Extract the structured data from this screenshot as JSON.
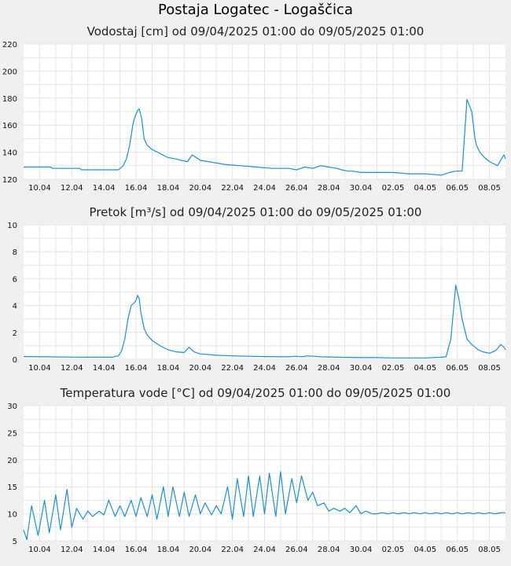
{
  "title": "Postaja Logatec - Logaščica",
  "colors": {
    "line": "#1f8fd0",
    "grid": "#e4e4e4",
    "plot_bg": "#ffffff",
    "page_bg": "#f0f0f0"
  },
  "chart_data": [
    {
      "type": "line",
      "title": "Vodostaj [cm] od 09/04/2025 01:00 do 09/05/2025 01:00",
      "xlabel": "",
      "ylabel": "",
      "x_tick_labels": [
        "10.04",
        "12.04",
        "14.04",
        "16.04",
        "18.04",
        "20.04",
        "22.04",
        "24.04",
        "26.04",
        "28.04",
        "30.04",
        "02.05",
        "04.05",
        "06.05",
        "08.05"
      ],
      "x_range_days": [
        0,
        30
      ],
      "ylim": [
        120,
        220
      ],
      "y_ticks": [
        120,
        140,
        160,
        180,
        200,
        220
      ],
      "grid": true,
      "series": [
        {
          "x": [
            0,
            0.8,
            1.7,
            1.8,
            3.5,
            3.6,
            4.0,
            5.9,
            6.2,
            6.4,
            6.6,
            6.8,
            6.9,
            7.0,
            7.1,
            7.2,
            7.35,
            7.5,
            7.7,
            8.0,
            8.5,
            9.0,
            9.5,
            9.8,
            10.2,
            10.5,
            11.0,
            11.5,
            12.5,
            13.5,
            14.5,
            15.5,
            16.5,
            17.0,
            17.5,
            18.0,
            18.5,
            19.0,
            19.5,
            19.8,
            20.2,
            20.5,
            21.0,
            22.0,
            23.0,
            24.0,
            25.0,
            26.0,
            26.5,
            26.9,
            27.3,
            27.6,
            27.9,
            28.1,
            28.2,
            28.4,
            28.7,
            29.0,
            29.5,
            29.9,
            30.0
          ],
          "y": [
            129,
            129,
            129,
            128,
            128,
            127,
            127,
            127,
            130,
            135,
            145,
            160,
            165,
            168,
            171,
            172,
            165,
            150,
            145,
            142,
            139,
            136,
            135,
            134,
            133,
            138,
            134,
            133,
            131,
            130,
            129,
            128,
            128,
            127,
            129,
            128,
            130,
            129,
            128,
            127,
            126,
            126,
            125,
            125,
            125,
            124,
            124,
            123,
            125,
            126,
            126,
            179,
            170,
            150,
            145,
            140,
            136,
            133,
            130,
            138,
            135
          ]
        }
      ]
    },
    {
      "type": "line",
      "title": "Pretok [m³/s] od 09/04/2025 01:00 do 09/05/2025 01:00",
      "xlabel": "",
      "ylabel": "",
      "x_tick_labels": [
        "10.04",
        "12.04",
        "14.04",
        "16.04",
        "18.04",
        "20.04",
        "22.04",
        "24.04",
        "26.04",
        "28.04",
        "30.04",
        "02.05",
        "04.05",
        "06.05",
        "08.05"
      ],
      "x_range_days": [
        0,
        30
      ],
      "ylim": [
        0,
        10
      ],
      "y_ticks": [
        0,
        2,
        4,
        6,
        8,
        10
      ],
      "grid": true,
      "series": [
        {
          "x": [
            0,
            1.5,
            3.0,
            5.5,
            5.9,
            6.1,
            6.3,
            6.5,
            6.7,
            6.9,
            7.0,
            7.1,
            7.2,
            7.3,
            7.5,
            7.7,
            8.0,
            8.5,
            9.0,
            9.5,
            10.0,
            10.3,
            10.6,
            11.0,
            12.0,
            13.0,
            15.0,
            16.5,
            16.9,
            17.3,
            17.7,
            18.5,
            19.5,
            21.0,
            22.0,
            23.0,
            24.0,
            25.0,
            26.0,
            26.3,
            26.6,
            26.9,
            27.1,
            27.3,
            27.6,
            27.9,
            28.1,
            28.3,
            28.6,
            29.0,
            29.4,
            29.7,
            29.9,
            30.0
          ],
          "y": [
            0.2,
            0.18,
            0.16,
            0.15,
            0.25,
            0.6,
            1.5,
            3.0,
            4.0,
            4.2,
            4.4,
            4.75,
            4.5,
            3.5,
            2.3,
            1.8,
            1.4,
            1.0,
            0.7,
            0.55,
            0.5,
            0.9,
            0.55,
            0.4,
            0.3,
            0.25,
            0.2,
            0.18,
            0.22,
            0.18,
            0.25,
            0.18,
            0.15,
            0.12,
            0.12,
            0.1,
            0.1,
            0.1,
            0.15,
            0.18,
            1.5,
            5.5,
            4.5,
            3.0,
            1.5,
            1.1,
            0.9,
            0.7,
            0.55,
            0.45,
            0.65,
            1.1,
            0.9,
            0.7
          ]
        }
      ]
    },
    {
      "type": "line",
      "title": "Temperatura vode [°C] od 09/04/2025 01:00 do 09/05/2025 01:00",
      "xlabel": "",
      "ylabel": "",
      "x_tick_labels": [
        "10.04",
        "12.04",
        "14.04",
        "16.04",
        "18.04",
        "20.04",
        "22.04",
        "24.04",
        "26.04",
        "28.04",
        "30.04",
        "02.05",
        "04.05",
        "06.05",
        "08.05"
      ],
      "x_range_days": [
        0,
        30
      ],
      "ylim": [
        5,
        30
      ],
      "y_ticks": [
        5,
        10,
        15,
        20,
        25,
        30
      ],
      "grid": true,
      "series": [
        {
          "x": [
            0.0,
            0.2,
            0.5,
            0.9,
            1.3,
            1.6,
            2.0,
            2.3,
            2.7,
            3.0,
            3.3,
            3.7,
            4.0,
            4.3,
            4.7,
            5.0,
            5.3,
            5.7,
            6.0,
            6.3,
            6.7,
            7.0,
            7.3,
            7.7,
            8.0,
            8.3,
            8.7,
            9.0,
            9.3,
            9.7,
            10.0,
            10.3,
            10.7,
            11.0,
            11.3,
            11.7,
            12.0,
            12.3,
            12.7,
            13.0,
            13.3,
            13.7,
            14.0,
            14.3,
            14.7,
            15.0,
            15.3,
            15.7,
            16.0,
            16.3,
            16.7,
            17.0,
            17.3,
            17.7,
            18.0,
            18.3,
            18.7,
            19.0,
            19.3,
            19.7,
            20.0,
            20.3,
            20.7,
            21.0,
            21.3,
            21.7,
            22.0,
            22.3,
            22.7,
            23.0,
            23.3,
            23.7,
            24.0,
            24.3,
            24.7,
            25.0,
            25.3,
            25.7,
            26.0,
            26.3,
            26.7,
            27.0,
            27.3,
            27.7,
            28.0,
            28.3,
            28.7,
            29.0,
            29.3,
            29.7,
            30.0
          ],
          "y": [
            7.0,
            5.2,
            11.5,
            6.0,
            12.5,
            6.5,
            13.5,
            7.0,
            14.5,
            7.5,
            11.0,
            9.0,
            10.5,
            9.5,
            10.5,
            9.8,
            12.5,
            9.5,
            11.5,
            9.5,
            12.5,
            9.5,
            13.0,
            9.5,
            13.5,
            9.0,
            15.0,
            9.5,
            15.0,
            9.5,
            14.0,
            9.5,
            13.5,
            10.0,
            12.0,
            9.8,
            11.5,
            10.0,
            15.0,
            9.0,
            16.5,
            9.5,
            17.0,
            9.5,
            17.0,
            10.0,
            17.5,
            9.5,
            17.8,
            10.0,
            16.5,
            12.0,
            17.0,
            12.5,
            14.0,
            11.5,
            12.0,
            10.5,
            11.0,
            10.5,
            11.0,
            10.2,
            11.5,
            10.0,
            10.5,
            10.0,
            10.0,
            10.2,
            10.0,
            10.2,
            10.0,
            10.2,
            10.0,
            10.2,
            10.0,
            10.2,
            10.0,
            10.2,
            10.0,
            10.2,
            10.0,
            10.2,
            10.0,
            10.2,
            10.0,
            10.2,
            10.0,
            10.2,
            10.0,
            10.2,
            10.2
          ]
        }
      ]
    }
  ]
}
